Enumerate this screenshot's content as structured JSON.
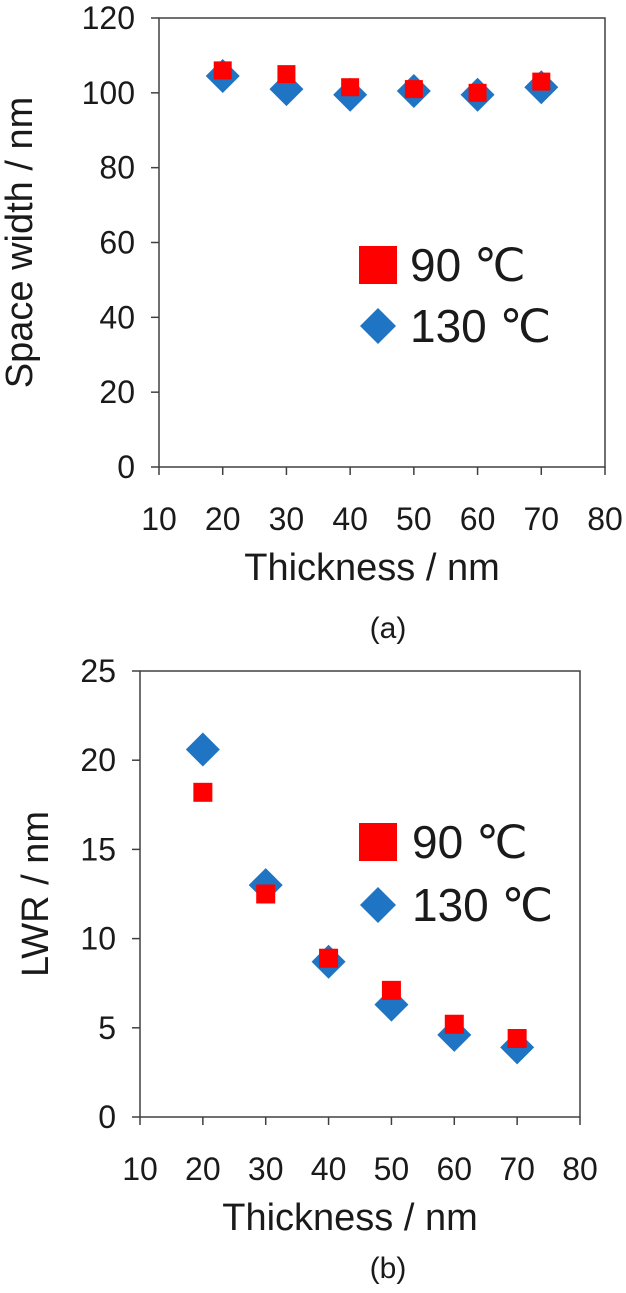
{
  "chart_data": [
    {
      "type": "scatter",
      "xlabel": "Thickness / nm",
      "ylabel": "Space width / nm",
      "xlim": [
        10,
        80
      ],
      "ylim": [
        0,
        120
      ],
      "xticks": [
        10,
        20,
        30,
        40,
        50,
        60,
        70,
        80
      ],
      "yticks": [
        0,
        20,
        40,
        60,
        80,
        100,
        120
      ],
      "grid": false,
      "legend_position": "right",
      "panel_label": "(a)",
      "series": [
        {
          "name": "90 ℃",
          "marker": "square",
          "color": "#ff0000",
          "x": [
            20,
            30,
            40,
            50,
            60,
            70
          ],
          "y": [
            106,
            105,
            101.5,
            101,
            100,
            103
          ]
        },
        {
          "name": "130 ℃",
          "marker": "diamond",
          "color": "#1f74c4",
          "x": [
            20,
            30,
            40,
            50,
            60,
            70
          ],
          "y": [
            104.5,
            101,
            99.5,
            100.5,
            99.5,
            101.5
          ]
        }
      ]
    },
    {
      "type": "scatter",
      "xlabel": "Thickness / nm",
      "ylabel": "LWR / nm",
      "xlim": [
        10,
        80
      ],
      "ylim": [
        0,
        25
      ],
      "xticks": [
        10,
        20,
        30,
        40,
        50,
        60,
        70,
        80
      ],
      "yticks": [
        0,
        5,
        10,
        15,
        20,
        25
      ],
      "grid": false,
      "legend_position": "right",
      "panel_label": "(b)",
      "series": [
        {
          "name": "90 ℃",
          "marker": "square",
          "color": "#ff0000",
          "x": [
            20,
            30,
            40,
            50,
            60,
            70
          ],
          "y": [
            18.2,
            12.5,
            8.9,
            7.1,
            5.2,
            4.4
          ]
        },
        {
          "name": "130 ℃",
          "marker": "diamond",
          "color": "#1f74c4",
          "x": [
            20,
            30,
            40,
            50,
            60,
            70
          ],
          "y": [
            20.6,
            13,
            8.7,
            6.3,
            4.6,
            3.9
          ]
        }
      ]
    }
  ]
}
